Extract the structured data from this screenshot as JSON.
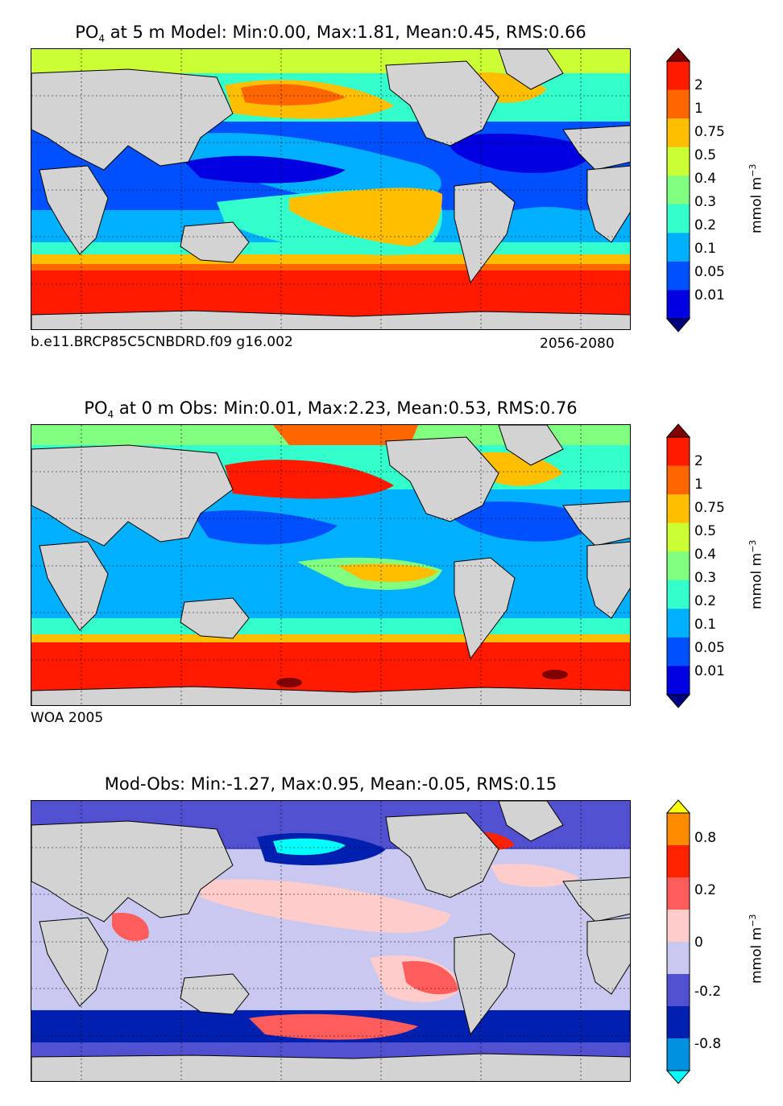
{
  "panels": [
    {
      "title_species": "PO",
      "title_sub": "4",
      "title_rest": " at 5 m Model: Min:0.00, Max:1.81, Mean:0.45, RMS:0.66",
      "footer_left": "b.e11.BRCP85C5CNBDRD.f09 g16.002",
      "footer_right": "2056-2080",
      "colorbar": {
        "ticks": [
          "2",
          "1",
          "0.75",
          "0.5",
          "0.4",
          "0.3",
          "0.2",
          "0.1",
          "0.05",
          "0.01"
        ],
        "colors": [
          "#7f0000",
          "#ff1a00",
          "#ff6600",
          "#ffbf00",
          "#ccff33",
          "#80ff80",
          "#33ffcc",
          "#00b0ff",
          "#0050ff",
          "#0000e0",
          "#00007f"
        ],
        "unit_base": "mmol m",
        "unit_exp": "−3"
      }
    },
    {
      "title_species": "PO",
      "title_sub": "4",
      "title_rest": " at 0 m Obs: Min:0.01, Max:2.23, Mean:0.53, RMS:0.76",
      "footer_left": "WOA 2005",
      "colorbar": {
        "ticks": [
          "2",
          "1",
          "0.75",
          "0.5",
          "0.4",
          "0.3",
          "0.2",
          "0.1",
          "0.05",
          "0.01"
        ],
        "colors": [
          "#7f0000",
          "#ff1a00",
          "#ff6600",
          "#ffbf00",
          "#ccff33",
          "#80ff80",
          "#33ffcc",
          "#00b0ff",
          "#0050ff",
          "#0000e0",
          "#00007f"
        ],
        "unit_base": "mmol m",
        "unit_exp": "−3"
      }
    },
    {
      "title": "Mod-Obs: Min:-1.27, Max:0.95, Mean:-0.05, RMS:0.15",
      "colorbar": {
        "ticks": [
          "0.8",
          "0.2",
          "0",
          "-0.2",
          "-0.8"
        ],
        "colors": [
          "#ffff00",
          "#ff8c00",
          "#ff2200",
          "#ff5c5c",
          "#ffcccc",
          "#c8c8f0",
          "#5050d0",
          "#0020b0",
          "#0090e0",
          "#00ffff"
        ],
        "unit_base": "mmol m",
        "unit_exp": "−3"
      }
    }
  ]
}
